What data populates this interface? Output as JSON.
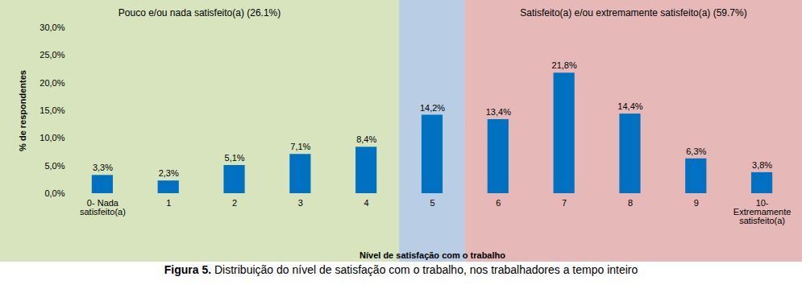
{
  "chart_data": {
    "type": "bar",
    "figure_label": "Figura 5.",
    "caption": "Distribuição do nível de satisfação com o trabalho, nos trabalhadores a tempo inteiro",
    "xlabel": "Nível de satisfação com o trabalho",
    "ylabel": "% de respondentes",
    "categories": [
      "0- Nada satisfeito(a)",
      "1",
      "2",
      "3",
      "4",
      "5",
      "6",
      "7",
      "8",
      "9",
      "10- Extremamente satisfeito(a)"
    ],
    "values": [
      3.3,
      2.3,
      5.1,
      7.1,
      8.4,
      14.2,
      13.4,
      21.8,
      14.4,
      6.3,
      3.8
    ],
    "value_labels": [
      "3,3%",
      "2,3%",
      "5,1%",
      "7,1%",
      "8,4%",
      "14,2%",
      "13,4%",
      "21,8%",
      "14,4%",
      "6,3%",
      "3,8%"
    ],
    "color": "#0070c0",
    "data_labels": true,
    "grid": false,
    "ylim": [
      0,
      30
    ],
    "yticks": [
      {
        "value": 0,
        "label": "0,0%"
      },
      {
        "value": 5,
        "label": "5,0%"
      },
      {
        "value": 10,
        "label": "10,0%"
      },
      {
        "value": 15,
        "label": "15,0%"
      },
      {
        "value": 20,
        "label": "20,0%"
      },
      {
        "value": 25,
        "label": "25,0%"
      },
      {
        "value": 30,
        "label": "30,0%"
      }
    ],
    "annotations": [
      {
        "from": "0- Nada satisfeito(a)",
        "to": "4",
        "text": "Pouco e/ou nada satisfeito(a) (26.1%)",
        "color": "#d7e4bd"
      },
      {
        "from": "5",
        "to": "5",
        "color": "#b9cde5"
      },
      {
        "from": "6",
        "to": "10- Extremamente satisfeito(a)",
        "text": "Satisfeito(a) e/ou extremamente satisfeito(a) (59.7%)",
        "color": "#e6b9b8"
      }
    ]
  }
}
